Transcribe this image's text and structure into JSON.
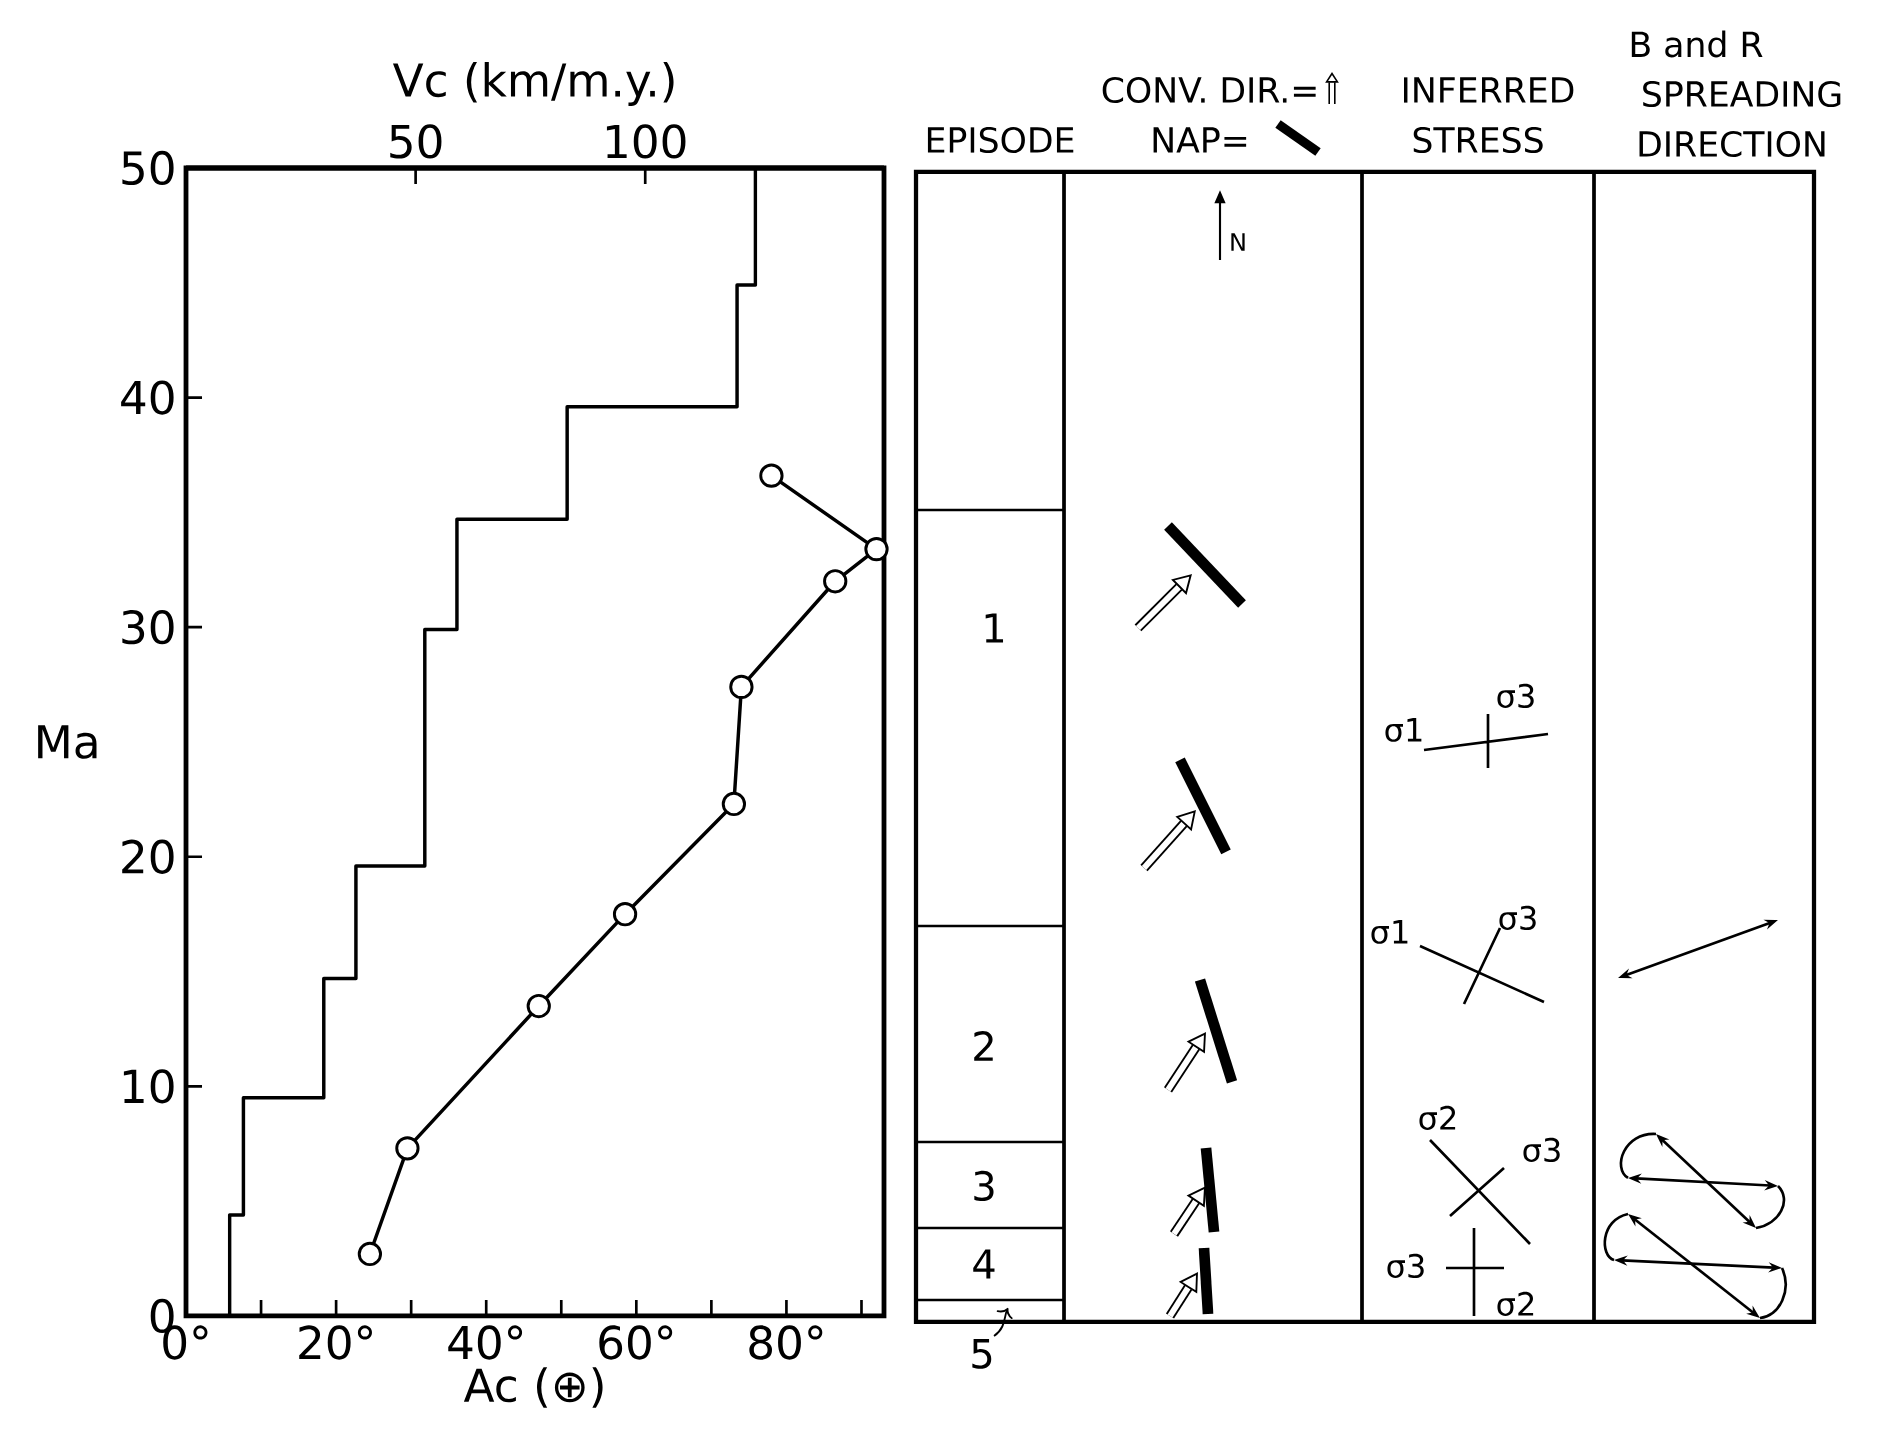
{
  "chart_data": [
    {
      "type": "line",
      "xlabel": "Ac (⊕)",
      "x2label": "Vc (km/m.y.)",
      "ylabel": "Ma",
      "xlim": [
        0,
        93
      ],
      "xticks": [
        {
          "value": 0,
          "label": "0°"
        },
        {
          "value": 10,
          "label": null
        },
        {
          "value": 20,
          "label": "20°"
        },
        {
          "value": 30,
          "label": null
        },
        {
          "value": 40,
          "label": "40°"
        },
        {
          "value": 50,
          "label": null
        },
        {
          "value": 60,
          "label": "60°"
        },
        {
          "value": 70,
          "label": null
        },
        {
          "value": 80,
          "label": "80°"
        },
        {
          "value": 90,
          "label": null
        }
      ],
      "x2lim": [
        0,
        152
      ],
      "x2ticks": [
        50,
        100
      ],
      "ylim": [
        0,
        50
      ],
      "yticks": [
        0,
        10,
        20,
        30,
        40,
        50
      ],
      "series": [
        {
          "color": "#000000",
          "axis": "x2",
          "marker": "none",
          "x": [
            9.5,
            9.5,
            12.5,
            12.5,
            30,
            30,
            37,
            37,
            52,
            52,
            59,
            59,
            83,
            83,
            120,
            120,
            124,
            124
          ],
          "values": [
            0,
            4.4,
            4.4,
            9.5,
            9.5,
            14.7,
            14.7,
            19.6,
            19.6,
            29.9,
            29.9,
            34.7,
            34.7,
            39.6,
            39.6,
            44.9,
            44.9,
            50
          ]
        },
        {
          "color": "#000000",
          "marker": "circle",
          "x": [
            78,
            92,
            86.5,
            74,
            73,
            58.5,
            47,
            29.5,
            24.5
          ],
          "values": [
            36.6,
            33.4,
            32,
            27.4,
            22.3,
            17.5,
            13.5,
            7.3,
            2.7
          ]
        }
      ]
    },
    {
      "type": "other",
      "annotations": [
        "EPISODE",
        "CONV. DIR.=",
        "NAP=",
        "INFERRED",
        "STRESS",
        "B and R",
        "SPREADING",
        "DIRECTION",
        "N",
        "1",
        "2",
        "3",
        "4",
        "5",
        "σ1",
        "σ3",
        "σ1",
        "σ3",
        "σ2",
        "σ3",
        "σ3",
        "σ2"
      ]
    }
  ]
}
